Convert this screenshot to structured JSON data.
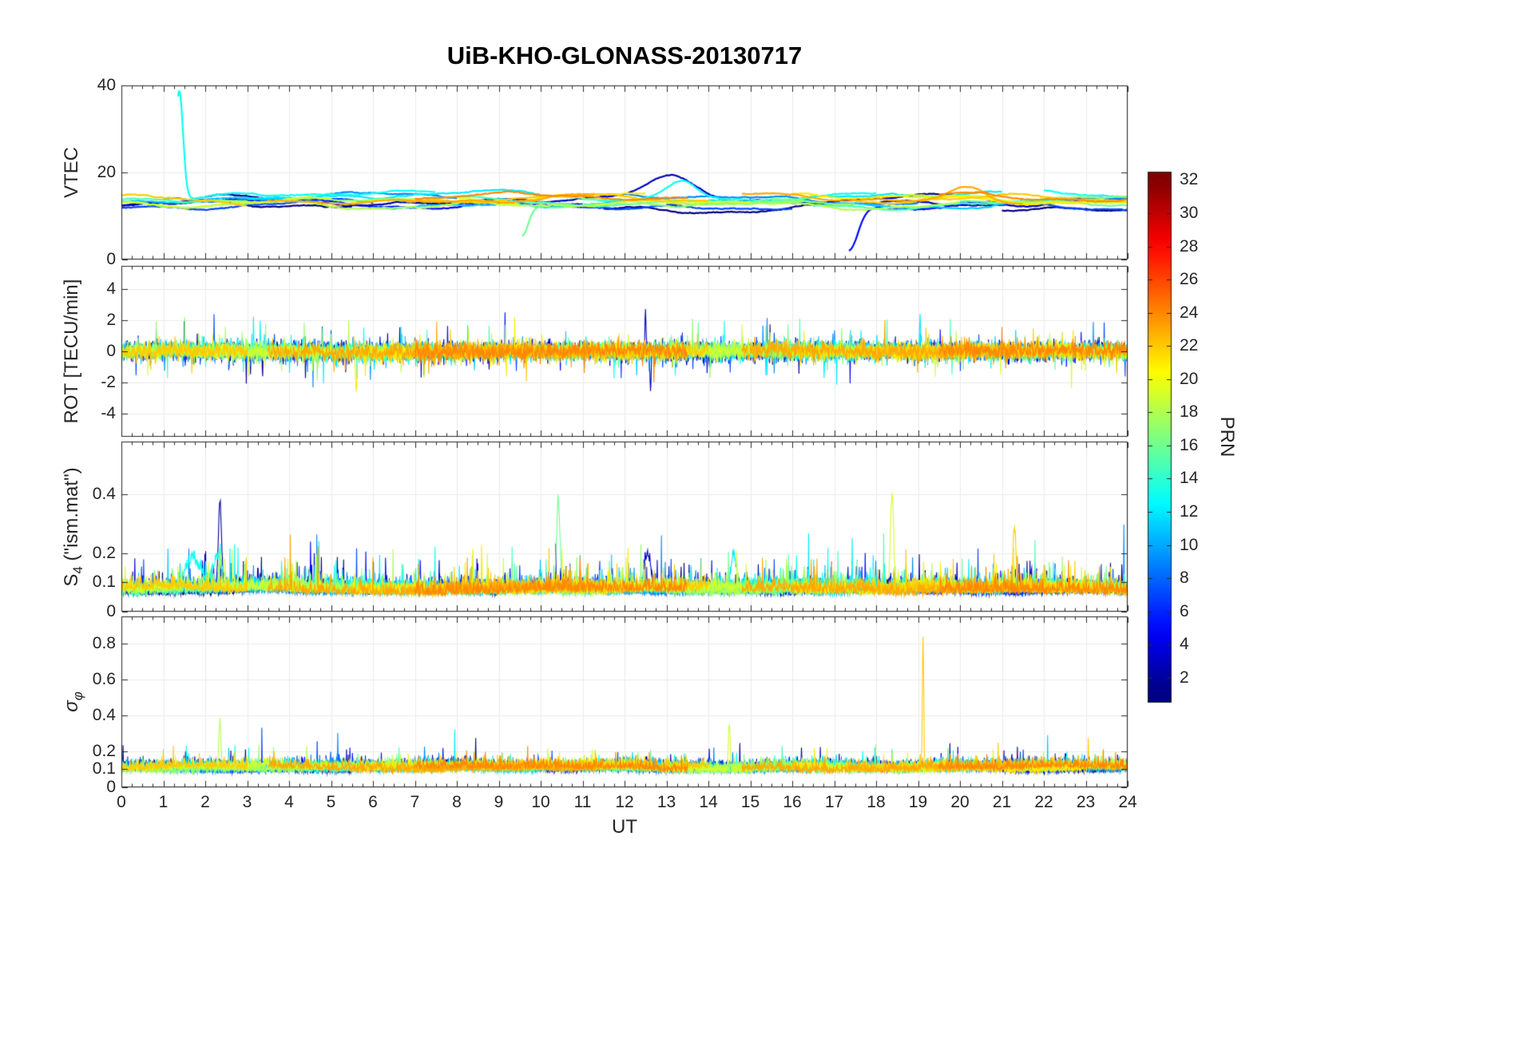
{
  "title": "UiB-KHO-GLONASS-20130717",
  "xlabel": "UT",
  "x_axis": {
    "min": 0,
    "max": 24,
    "major_tick_step": 1,
    "minor_tick_step": 0.25,
    "tick_labels": [
      "0",
      "1",
      "2",
      "3",
      "4",
      "5",
      "6",
      "7",
      "8",
      "9",
      "10",
      "11",
      "12",
      "13",
      "14",
      "15",
      "16",
      "17",
      "18",
      "19",
      "20",
      "21",
      "22",
      "23",
      "24"
    ]
  },
  "colorbar": {
    "label": "PRN",
    "colormap": "jet",
    "value_min": 0.5,
    "value_max": 32.5,
    "prn_norm_min": 1,
    "prn_norm_max": 32,
    "ticks": [
      2,
      4,
      6,
      8,
      10,
      12,
      14,
      16,
      18,
      20,
      22,
      24,
      26,
      28,
      30,
      32
    ]
  },
  "chart_data": {
    "type": "line",
    "note": "Four stacked time-series panels of GLONASS ionosphere parameters vs UT, one colored trace per satellite PRN (jet colormap). Traces are noisy arcs; series are described by baseline, noise and spike parameters read by the renderer.",
    "panels": [
      {
        "id": "vtec",
        "ylabel": {
          "pre": "VTEC",
          "sub": "",
          "post": ""
        },
        "ylim": [
          0,
          40
        ],
        "yticks": [
          0,
          20,
          40
        ],
        "defaults": {
          "base": 13,
          "amp": 1.6,
          "noise": 0.12,
          "lw": 2.2,
          "dt": 0.02,
          "smooth": 0.9,
          "abs": false,
          "tail": 0,
          "tailmult": 1
        }
      },
      {
        "id": "rot",
        "ylabel": {
          "pre": "ROT [TECU/min]",
          "sub": "",
          "post": ""
        },
        "ylim": [
          -5.5,
          5.5
        ],
        "yticks": [
          -4,
          -2,
          0,
          2,
          4
        ],
        "defaults": {
          "base": 0,
          "amp": 0.12,
          "noise": 0.27,
          "lw": 1.1,
          "dt": 0.01,
          "smooth": 0,
          "abs": false,
          "tail": 0.03,
          "tailmult": 3.0
        }
      },
      {
        "id": "s4",
        "ylabel": {
          "pre": "S",
          "sub": "4",
          "post": " (\"ism.mat\")"
        },
        "ylim": [
          0,
          0.58
        ],
        "yticks": [
          0,
          0.1,
          0.2,
          0.4
        ],
        "defaults": {
          "base": 0.065,
          "amp": 0.012,
          "noise": 0.02,
          "lw": 1.1,
          "dt": 0.01,
          "smooth": 0,
          "abs": true,
          "tail": 0.04,
          "tailmult": 3.2
        }
      },
      {
        "id": "sigma",
        "ylabel": {
          "pre": "σ",
          "sub": "φ",
          "post": ""
        },
        "ylim": [
          0,
          0.95
        ],
        "yticks": [
          0,
          0.1,
          0.2,
          0.4,
          0.6,
          0.8
        ],
        "defaults": {
          "base": 0.095,
          "amp": 0.018,
          "noise": 0.024,
          "lw": 1.1,
          "dt": 0.01,
          "smooth": 0,
          "abs": true,
          "tail": 0.025,
          "tailmult": 2.6
        }
      }
    ],
    "satellites": [
      {
        "prn": 1,
        "windows": [
          [
            0,
            5.5
          ],
          [
            11.5,
            17
          ],
          [
            21,
            24
          ]
        ],
        "vtec": {
          "base": 12.0
        }
      },
      {
        "prn": 2,
        "windows": [
          [
            2,
            9
          ],
          [
            13,
            20
          ]
        ],
        "vtec": {
          "base": 13.5
        },
        "s4": {
          "spikes": [
            {
              "t": 2.35,
              "h": 0.3,
              "w": 0.05
            }
          ]
        }
      },
      {
        "prn": 3,
        "windows": [
          [
            0,
            3.5
          ],
          [
            7.5,
            14.5
          ],
          [
            18,
            24
          ]
        ],
        "vtec": {
          "base": 13.5,
          "spikes": [
            {
              "t": 13.1,
              "h": 4.5,
              "w": 0.8
            }
          ]
        },
        "rot": {
          "spikes": [
            {
              "t": 12.5,
              "h": 2.4,
              "w": 0.02
            },
            {
              "t": 12.62,
              "h": -2.6,
              "w": 0.02
            }
          ]
        },
        "s4": {
          "spikes": [
            {
              "t": 12.55,
              "h": 0.12,
              "w": 0.1
            }
          ]
        }
      },
      {
        "prn": 5,
        "windows": [
          [
            4,
            11
          ],
          [
            17.35,
            23
          ]
        ],
        "vtec": {
          "base": 13.0,
          "spikes": [
            {
              "t": 17.35,
              "h": -10,
              "w": 0.3
            }
          ]
        }
      },
      {
        "prn": 7,
        "windows": [
          [
            0,
            6
          ],
          [
            9,
            16
          ],
          [
            20,
            24
          ]
        ],
        "vtec": {
          "base": 12.5
        }
      },
      {
        "prn": 9,
        "windows": [
          [
            1,
            8
          ],
          [
            12,
            19
          ],
          [
            23,
            24
          ]
        ],
        "vtec": {
          "base": 14.0
        }
      },
      {
        "prn": 11,
        "windows": [
          [
            0,
            4
          ],
          [
            6,
            13
          ],
          [
            16.5,
            22.5
          ]
        ],
        "vtec": {
          "base": 13.0
        }
      },
      {
        "prn": 12,
        "windows": [
          [
            3,
            10
          ],
          [
            14,
            21
          ]
        ],
        "vtec": {
          "base": 14.5
        },
        "rot": {
          "spikes": [
            {
              "t": 19.05,
              "h": 2.3,
              "w": 0.02
            }
          ]
        },
        "s4": {
          "spikes": [
            {
              "t": 14.6,
              "h": 0.12,
              "w": 0.08
            }
          ]
        }
      },
      {
        "prn": 13,
        "windows": [
          [
            1.35,
            7.5
          ],
          [
            11,
            18
          ],
          [
            22,
            24
          ]
        ],
        "vtec": {
          "base": 14.5,
          "spikes": [
            {
              "t": 1.38,
              "h": 25,
              "w": 0.13
            },
            {
              "t": 13.4,
              "h": 4.0,
              "w": 0.5
            }
          ]
        },
        "s4": {
          "base": 0.08,
          "spikes": [
            {
              "t": 1.7,
              "h": 0.08,
              "w": 0.25
            },
            {
              "t": 2.3,
              "h": 0.1,
              "w": 0.15
            }
          ]
        }
      },
      {
        "prn": 15,
        "windows": [
          [
            0,
            2.5
          ],
          [
            5,
            12
          ],
          [
            15.5,
            22
          ]
        ],
        "vtec": {
          "base": 13.0
        }
      },
      {
        "prn": 16,
        "windows": [
          [
            9.55,
            16.5
          ],
          [
            20,
            24
          ]
        ],
        "vtec": {
          "base": 13.5,
          "spikes": [
            {
              "t": 9.55,
              "h": -7.5,
              "w": 0.22
            }
          ]
        },
        "s4": {
          "spikes": [
            {
              "t": 10.42,
              "h": 0.3,
              "w": 0.06
            }
          ]
        }
      },
      {
        "prn": 17,
        "windows": [
          [
            0,
            7
          ],
          [
            10.5,
            17.5
          ],
          [
            21.5,
            24
          ]
        ],
        "vtec": {
          "base": 13.5
        }
      },
      {
        "prn": 18,
        "windows": [
          [
            2.2,
            9.5
          ],
          [
            13,
            20
          ]
        ],
        "vtec": {
          "base": 13.0
        },
        "sigma": {
          "spikes": [
            {
              "t": 2.35,
              "h": 0.26,
              "w": 0.035
            }
          ]
        },
        "s4": {
          "spikes": [
            {
              "t": 2.35,
              "h": 0.1,
              "w": 0.05
            }
          ]
        }
      },
      {
        "prn": 19,
        "windows": [
          [
            0,
            5
          ],
          [
            8,
            15
          ],
          [
            18.3,
            24
          ]
        ],
        "vtec": {
          "base": 13.5
        },
        "s4": {
          "spikes": [
            {
              "t": 18.38,
              "h": 0.32,
              "w": 0.05
            }
          ]
        },
        "sigma": {
          "spikes": [
            {
              "t": 14.5,
              "h": 0.24,
              "w": 0.03
            }
          ]
        }
      },
      {
        "prn": 21,
        "windows": [
          [
            5.5,
            12.5
          ],
          [
            16,
            23
          ]
        ],
        "vtec": {
          "base": 14.0
        },
        "rot": {
          "spikes": [
            {
              "t": 5.6,
              "h": -2.4,
              "w": 0.025
            }
          ]
        }
      },
      {
        "prn": 22,
        "windows": [
          [
            0,
            3
          ],
          [
            6.8,
            14
          ],
          [
            17.5,
            24
          ]
        ],
        "vtec": {
          "base": 13.5
        },
        "sigma": {
          "spikes": [
            {
              "t": 19.12,
              "h": 0.74,
              "w": 0.022
            }
          ]
        },
        "s4": {
          "spikes": [
            {
              "t": 21.3,
              "h": 0.2,
              "w": 0.05
            }
          ]
        }
      },
      {
        "prn": 23,
        "windows": [
          [
            3.5,
            11.3
          ],
          [
            14.8,
            21.5
          ]
        ],
        "vtec": {
          "base": 14.0,
          "spikes": [
            {
              "t": 20.2,
              "h": 3.0,
              "w": 0.6
            }
          ]
        },
        "rot": {
          "noise": 0.3
        }
      },
      {
        "prn": 24,
        "windows": [
          [
            7,
            13.5
          ],
          [
            19.5,
            24
          ]
        ],
        "vtec": {
          "base": 14.0
        }
      }
    ]
  }
}
